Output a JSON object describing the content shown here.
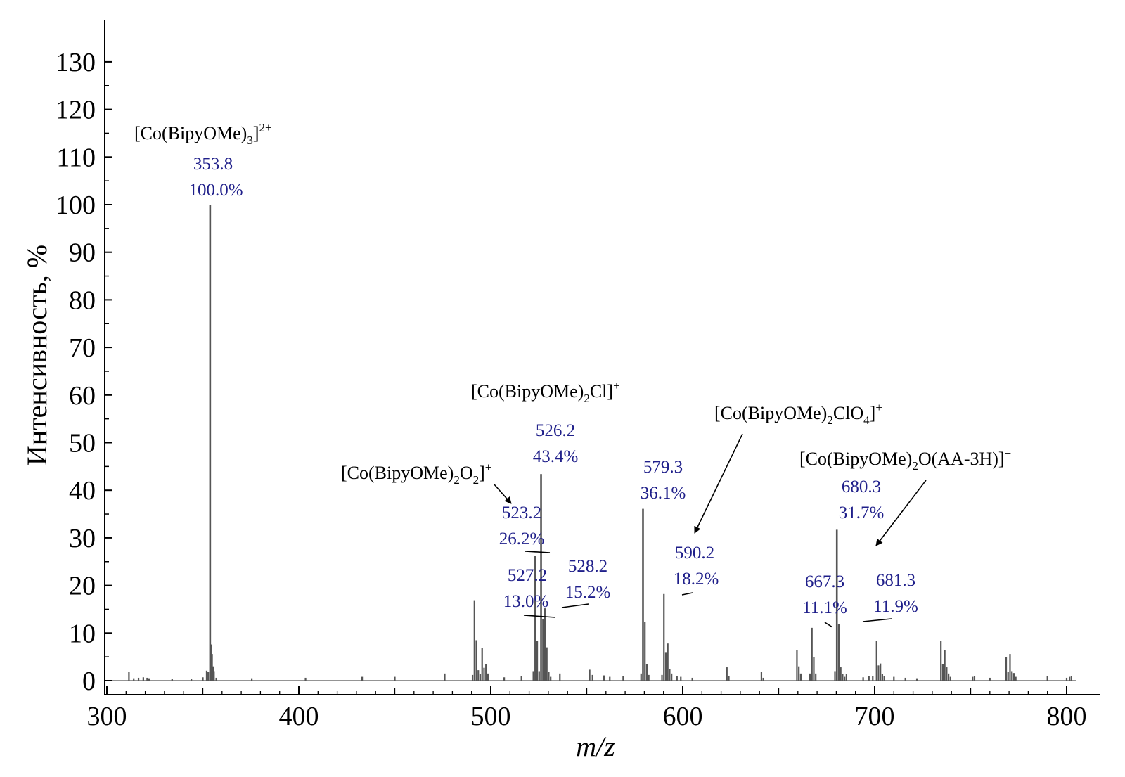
{
  "chart_data": {
    "type": "bar",
    "title": "",
    "xlabel": "m/z",
    "ylabel": "Интенсивность, %",
    "xlim": [
      300,
      805
    ],
    "ylim": [
      0,
      137
    ],
    "x_ticks": [
      300,
      400,
      500,
      600,
      700,
      800
    ],
    "y_ticks": [
      0,
      10,
      20,
      30,
      40,
      50,
      60,
      70,
      80,
      90,
      100,
      110,
      120,
      130
    ],
    "grid": false,
    "bar_color": "#555555",
    "label_color": "#1f1f8a",
    "peaks": [
      {
        "x": 311.5,
        "y": 1.8
      },
      {
        "x": 314,
        "y": 0.5
      },
      {
        "x": 316.5,
        "y": 0.6
      },
      {
        "x": 319,
        "y": 0.7
      },
      {
        "x": 321,
        "y": 0.6
      },
      {
        "x": 322,
        "y": 0.5
      },
      {
        "x": 334,
        "y": 0.3
      },
      {
        "x": 344,
        "y": 0.3
      },
      {
        "x": 350,
        "y": 0.7
      },
      {
        "x": 352,
        "y": 2.1
      },
      {
        "x": 352.8,
        "y": 1.8
      },
      {
        "x": 353.8,
        "y": 100.0
      },
      {
        "x": 354.3,
        "y": 7.6
      },
      {
        "x": 354.8,
        "y": 5.6
      },
      {
        "x": 355.3,
        "y": 3.0
      },
      {
        "x": 355.8,
        "y": 2.0
      },
      {
        "x": 357,
        "y": 0.6
      },
      {
        "x": 375.5,
        "y": 0.5
      },
      {
        "x": 403.5,
        "y": 0.6
      },
      {
        "x": 433,
        "y": 0.8
      },
      {
        "x": 450,
        "y": 0.8
      },
      {
        "x": 476,
        "y": 1.5
      },
      {
        "x": 490.5,
        "y": 1.2
      },
      {
        "x": 491.5,
        "y": 16.9
      },
      {
        "x": 492.5,
        "y": 8.5
      },
      {
        "x": 493.5,
        "y": 2.2
      },
      {
        "x": 494.5,
        "y": 1.4
      },
      {
        "x": 495.5,
        "y": 6.8
      },
      {
        "x": 496.5,
        "y": 2.7
      },
      {
        "x": 497.5,
        "y": 3.5
      },
      {
        "x": 498.5,
        "y": 1.5
      },
      {
        "x": 507,
        "y": 0.7
      },
      {
        "x": 516,
        "y": 1.0
      },
      {
        "x": 522.2,
        "y": 2.0
      },
      {
        "x": 523.2,
        "y": 26.2
      },
      {
        "x": 524.2,
        "y": 8.3
      },
      {
        "x": 525.2,
        "y": 2.0
      },
      {
        "x": 526.2,
        "y": 43.4
      },
      {
        "x": 527.2,
        "y": 13.0
      },
      {
        "x": 528.2,
        "y": 15.2
      },
      {
        "x": 529.2,
        "y": 7.0
      },
      {
        "x": 530.2,
        "y": 1.8
      },
      {
        "x": 531.2,
        "y": 0.8
      },
      {
        "x": 536,
        "y": 1.5
      },
      {
        "x": 551.5,
        "y": 2.3
      },
      {
        "x": 553,
        "y": 1.2
      },
      {
        "x": 559,
        "y": 1.1
      },
      {
        "x": 562,
        "y": 0.8
      },
      {
        "x": 569,
        "y": 1.0
      },
      {
        "x": 578.3,
        "y": 1.5
      },
      {
        "x": 579.3,
        "y": 36.1
      },
      {
        "x": 580.3,
        "y": 12.3
      },
      {
        "x": 581.3,
        "y": 3.5
      },
      {
        "x": 582.3,
        "y": 1.2
      },
      {
        "x": 589.2,
        "y": 1.2
      },
      {
        "x": 590.2,
        "y": 18.2
      },
      {
        "x": 591.2,
        "y": 6.0
      },
      {
        "x": 592.2,
        "y": 7.8
      },
      {
        "x": 593.2,
        "y": 2.5
      },
      {
        "x": 594.2,
        "y": 1.5
      },
      {
        "x": 597,
        "y": 1.0
      },
      {
        "x": 599,
        "y": 0.8
      },
      {
        "x": 605,
        "y": 0.6
      },
      {
        "x": 623,
        "y": 2.8
      },
      {
        "x": 624,
        "y": 1.0
      },
      {
        "x": 641,
        "y": 1.8
      },
      {
        "x": 642,
        "y": 0.6
      },
      {
        "x": 659.5,
        "y": 6.5
      },
      {
        "x": 660.5,
        "y": 3.0
      },
      {
        "x": 661.5,
        "y": 1.5
      },
      {
        "x": 666.3,
        "y": 1.5
      },
      {
        "x": 667.3,
        "y": 11.1
      },
      {
        "x": 668.3,
        "y": 5.0
      },
      {
        "x": 669.3,
        "y": 1.5
      },
      {
        "x": 679.3,
        "y": 2.0
      },
      {
        "x": 680.3,
        "y": 31.7
      },
      {
        "x": 681.3,
        "y": 11.9
      },
      {
        "x": 682.3,
        "y": 2.8
      },
      {
        "x": 683.3,
        "y": 1.4
      },
      {
        "x": 684.3,
        "y": 0.8
      },
      {
        "x": 685.3,
        "y": 1.4
      },
      {
        "x": 694,
        "y": 0.7
      },
      {
        "x": 697,
        "y": 1.0
      },
      {
        "x": 699,
        "y": 0.9
      },
      {
        "x": 701,
        "y": 8.4
      },
      {
        "x": 702,
        "y": 3.2
      },
      {
        "x": 703,
        "y": 3.6
      },
      {
        "x": 704,
        "y": 1.4
      },
      {
        "x": 705,
        "y": 1.0
      },
      {
        "x": 710,
        "y": 0.8
      },
      {
        "x": 716,
        "y": 0.6
      },
      {
        "x": 722,
        "y": 0.5
      },
      {
        "x": 734.5,
        "y": 8.4
      },
      {
        "x": 735.5,
        "y": 3.5
      },
      {
        "x": 736.5,
        "y": 6.5
      },
      {
        "x": 737.5,
        "y": 2.8
      },
      {
        "x": 738.5,
        "y": 1.5
      },
      {
        "x": 739.5,
        "y": 0.8
      },
      {
        "x": 751,
        "y": 0.8
      },
      {
        "x": 752,
        "y": 1.0
      },
      {
        "x": 760,
        "y": 0.6
      },
      {
        "x": 768.5,
        "y": 5.0
      },
      {
        "x": 769.5,
        "y": 1.8
      },
      {
        "x": 770.5,
        "y": 5.6
      },
      {
        "x": 771.5,
        "y": 2.0
      },
      {
        "x": 772.5,
        "y": 1.6
      },
      {
        "x": 773.5,
        "y": 0.8
      },
      {
        "x": 790,
        "y": 0.9
      },
      {
        "x": 800,
        "y": 0.6
      },
      {
        "x": 801.5,
        "y": 0.8
      },
      {
        "x": 802.5,
        "y": 1.0
      }
    ],
    "peak_labels": [
      {
        "mz": "353.8",
        "pct": "100.0%"
      },
      {
        "mz": "526.2",
        "pct": "43.4%"
      },
      {
        "mz": "523.2",
        "pct": "26.2%"
      },
      {
        "mz": "527.2",
        "pct": "13.0%"
      },
      {
        "mz": "528.2",
        "pct": "15.2%"
      },
      {
        "mz": "579.3",
        "pct": "36.1%"
      },
      {
        "mz": "590.2",
        "pct": "18.2%"
      },
      {
        "mz": "667.3",
        "pct": "11.1%"
      },
      {
        "mz": "680.3",
        "pct": "31.7%"
      },
      {
        "mz": "681.3",
        "pct": "11.9%"
      }
    ],
    "annotations": [
      "[Co(BipyOMe)3]2+",
      "[Co(BipyOMe)2Cl]+",
      "[Co(BipyOMe)2O2]+",
      "[Co(BipyOMe)2ClO4]+",
      "[Co(BipyOMe)2O(AA-3H)]+"
    ]
  }
}
